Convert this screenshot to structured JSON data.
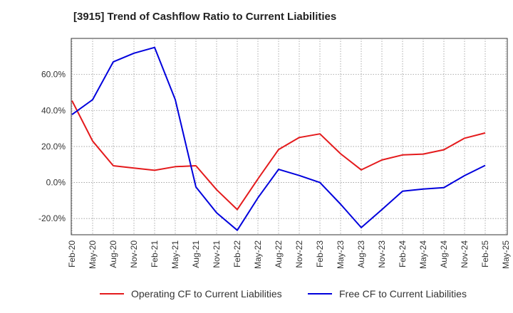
{
  "chart_data": {
    "type": "line",
    "title": "[3915]  Trend of Cashflow Ratio to Current Liabilities",
    "x": [
      "Feb-20",
      "May-20",
      "Aug-20",
      "Nov-20",
      "Feb-21",
      "May-21",
      "Aug-21",
      "Nov-21",
      "Feb-22",
      "May-22",
      "Aug-22",
      "Nov-22",
      "Feb-23",
      "May-23",
      "Aug-23",
      "Nov-23",
      "Feb-24",
      "May-24",
      "Aug-24",
      "Nov-24",
      "Feb-25",
      "May-25"
    ],
    "series": [
      {
        "name": "Operating CF to Current Liabilities",
        "color": "#e41a1c",
        "values": [
          45.5,
          23.0,
          9.3,
          8.0,
          6.8,
          8.8,
          9.3,
          -4.0,
          -15.0,
          2.0,
          18.3,
          25.0,
          27.0,
          16.0,
          7.0,
          12.5,
          15.3,
          15.8,
          18.2,
          24.6,
          27.5,
          null
        ]
      },
      {
        "name": "Free CF to Current Liabilities",
        "color": "#0000dd",
        "values": [
          37.7,
          46.0,
          67.0,
          71.8,
          75.0,
          46.0,
          -2.5,
          -16.8,
          -26.5,
          -8.5,
          7.3,
          3.9,
          0.0,
          -12.0,
          -25.0,
          -15.0,
          -4.8,
          -3.6,
          -2.8,
          3.8,
          9.5,
          null
        ]
      }
    ],
    "partial_points": {
      "operating_start_x_offset": 0.0,
      "free_mid_may21_inflect": 59.0
    },
    "ylim": [
      -29,
      80
    ],
    "yticks": [
      -20,
      0,
      20,
      40,
      60
    ],
    "ytick_labels": [
      "-20.0%",
      "0.0%",
      "20.0%",
      "40.0%",
      "60.0%"
    ],
    "grid": true,
    "legend_position": "bottom"
  }
}
